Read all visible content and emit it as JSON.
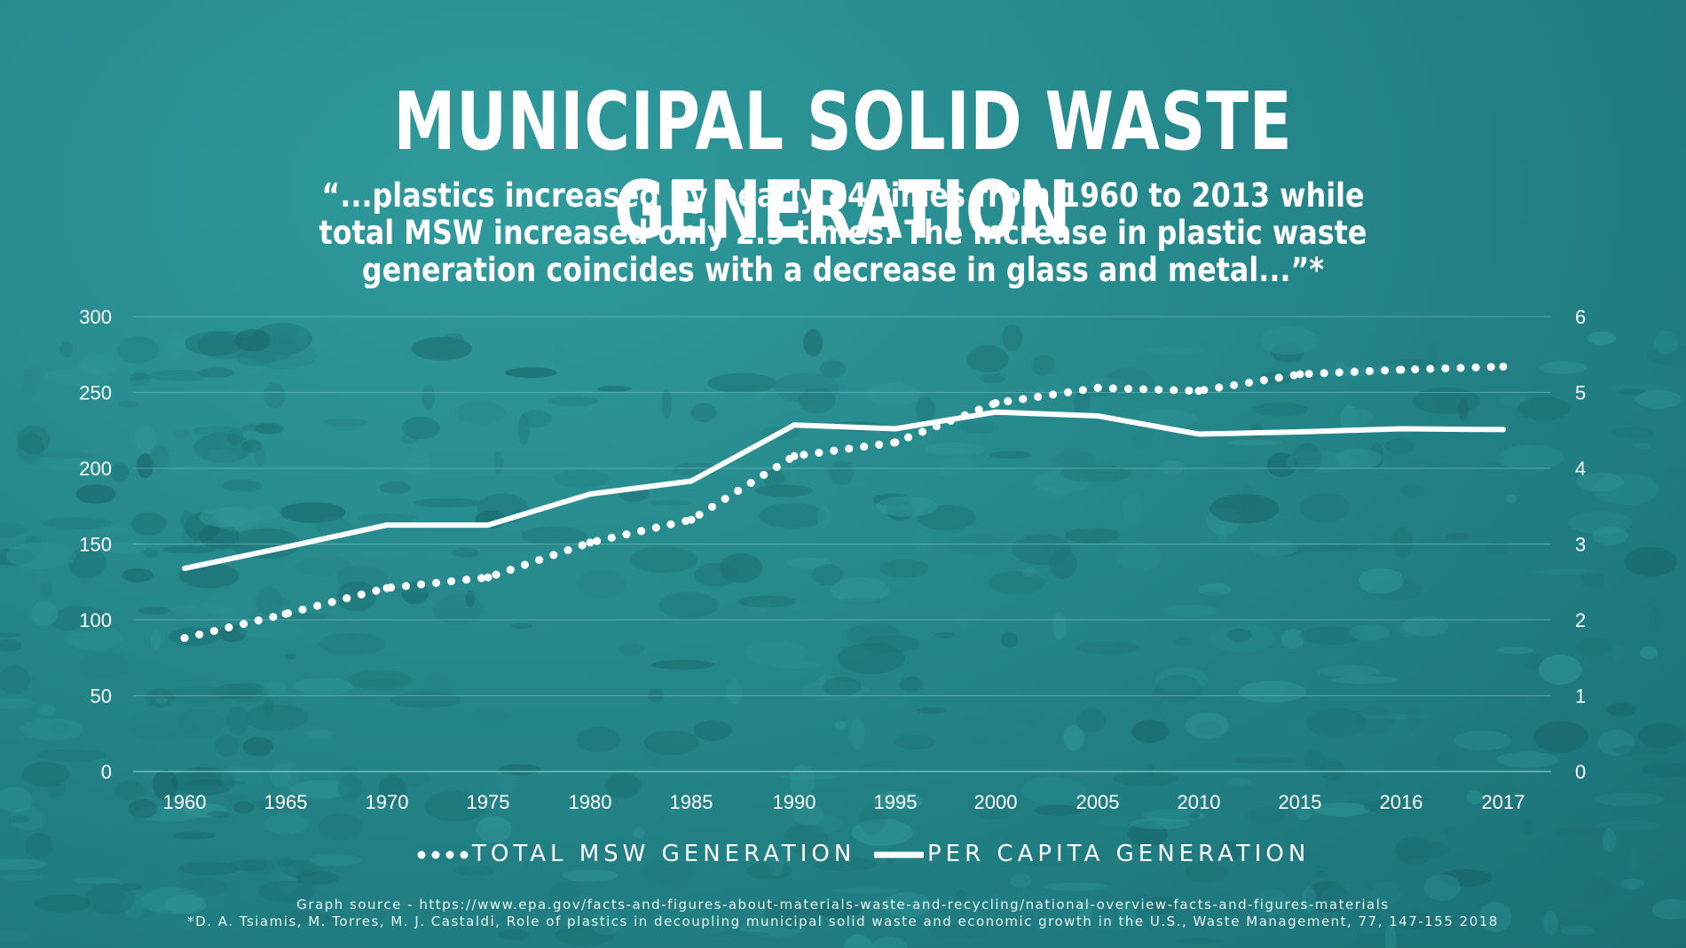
{
  "title": "MUNICIPAL SOLID WASTE GENERATION",
  "subtitle": "“...plastics increased by nearly 84 times from 1960 to 2013 while total MSW increased only 2.9 times. The increase in plastic waste generation coincides with a decrease in glass and metal...”*",
  "colors": {
    "background": "#26898c",
    "lines": "#ffffff",
    "grid": "#7fc4c6"
  },
  "chart_data": {
    "type": "line",
    "categories": [
      "1960",
      "1965",
      "1970",
      "1975",
      "1980",
      "1985",
      "1990",
      "1995",
      "2000",
      "2005",
      "2010",
      "2015",
      "2016",
      "2017"
    ],
    "series": [
      {
        "name": "TOTAL MSW GENERATION",
        "axis": "left",
        "style": "dotted",
        "values": [
          88,
          104,
          121,
          128,
          151,
          166,
          208,
          217,
          243,
          253,
          251,
          262,
          265,
          267
        ]
      },
      {
        "name": "PER CAPITA GENERATION",
        "axis": "right",
        "style": "solid",
        "values": [
          2.68,
          2.96,
          3.25,
          3.25,
          3.66,
          3.83,
          4.57,
          4.52,
          4.74,
          4.69,
          4.45,
          4.48,
          4.52,
          4.51
        ]
      }
    ],
    "y_left": {
      "lim": [
        0,
        300
      ],
      "ticks": [
        0,
        50,
        100,
        150,
        200,
        250,
        300
      ]
    },
    "y_right": {
      "lim": [
        0,
        6
      ],
      "ticks": [
        0,
        1,
        2,
        3,
        4,
        5,
        6
      ]
    },
    "grid": true,
    "legend_position": "bottom"
  },
  "sources": [
    "Graph source - https://www.epa.gov/facts-and-figures-about-materials-waste-and-recycling/national-overview-facts-and-figures-materials",
    "*D. A. Tsiamis, M. Torres, M. J. Castaldi, Role of plastics in decoupling municipal solid waste and economic growth in the U.S., Waste Management, 77, 147-155 2018"
  ]
}
